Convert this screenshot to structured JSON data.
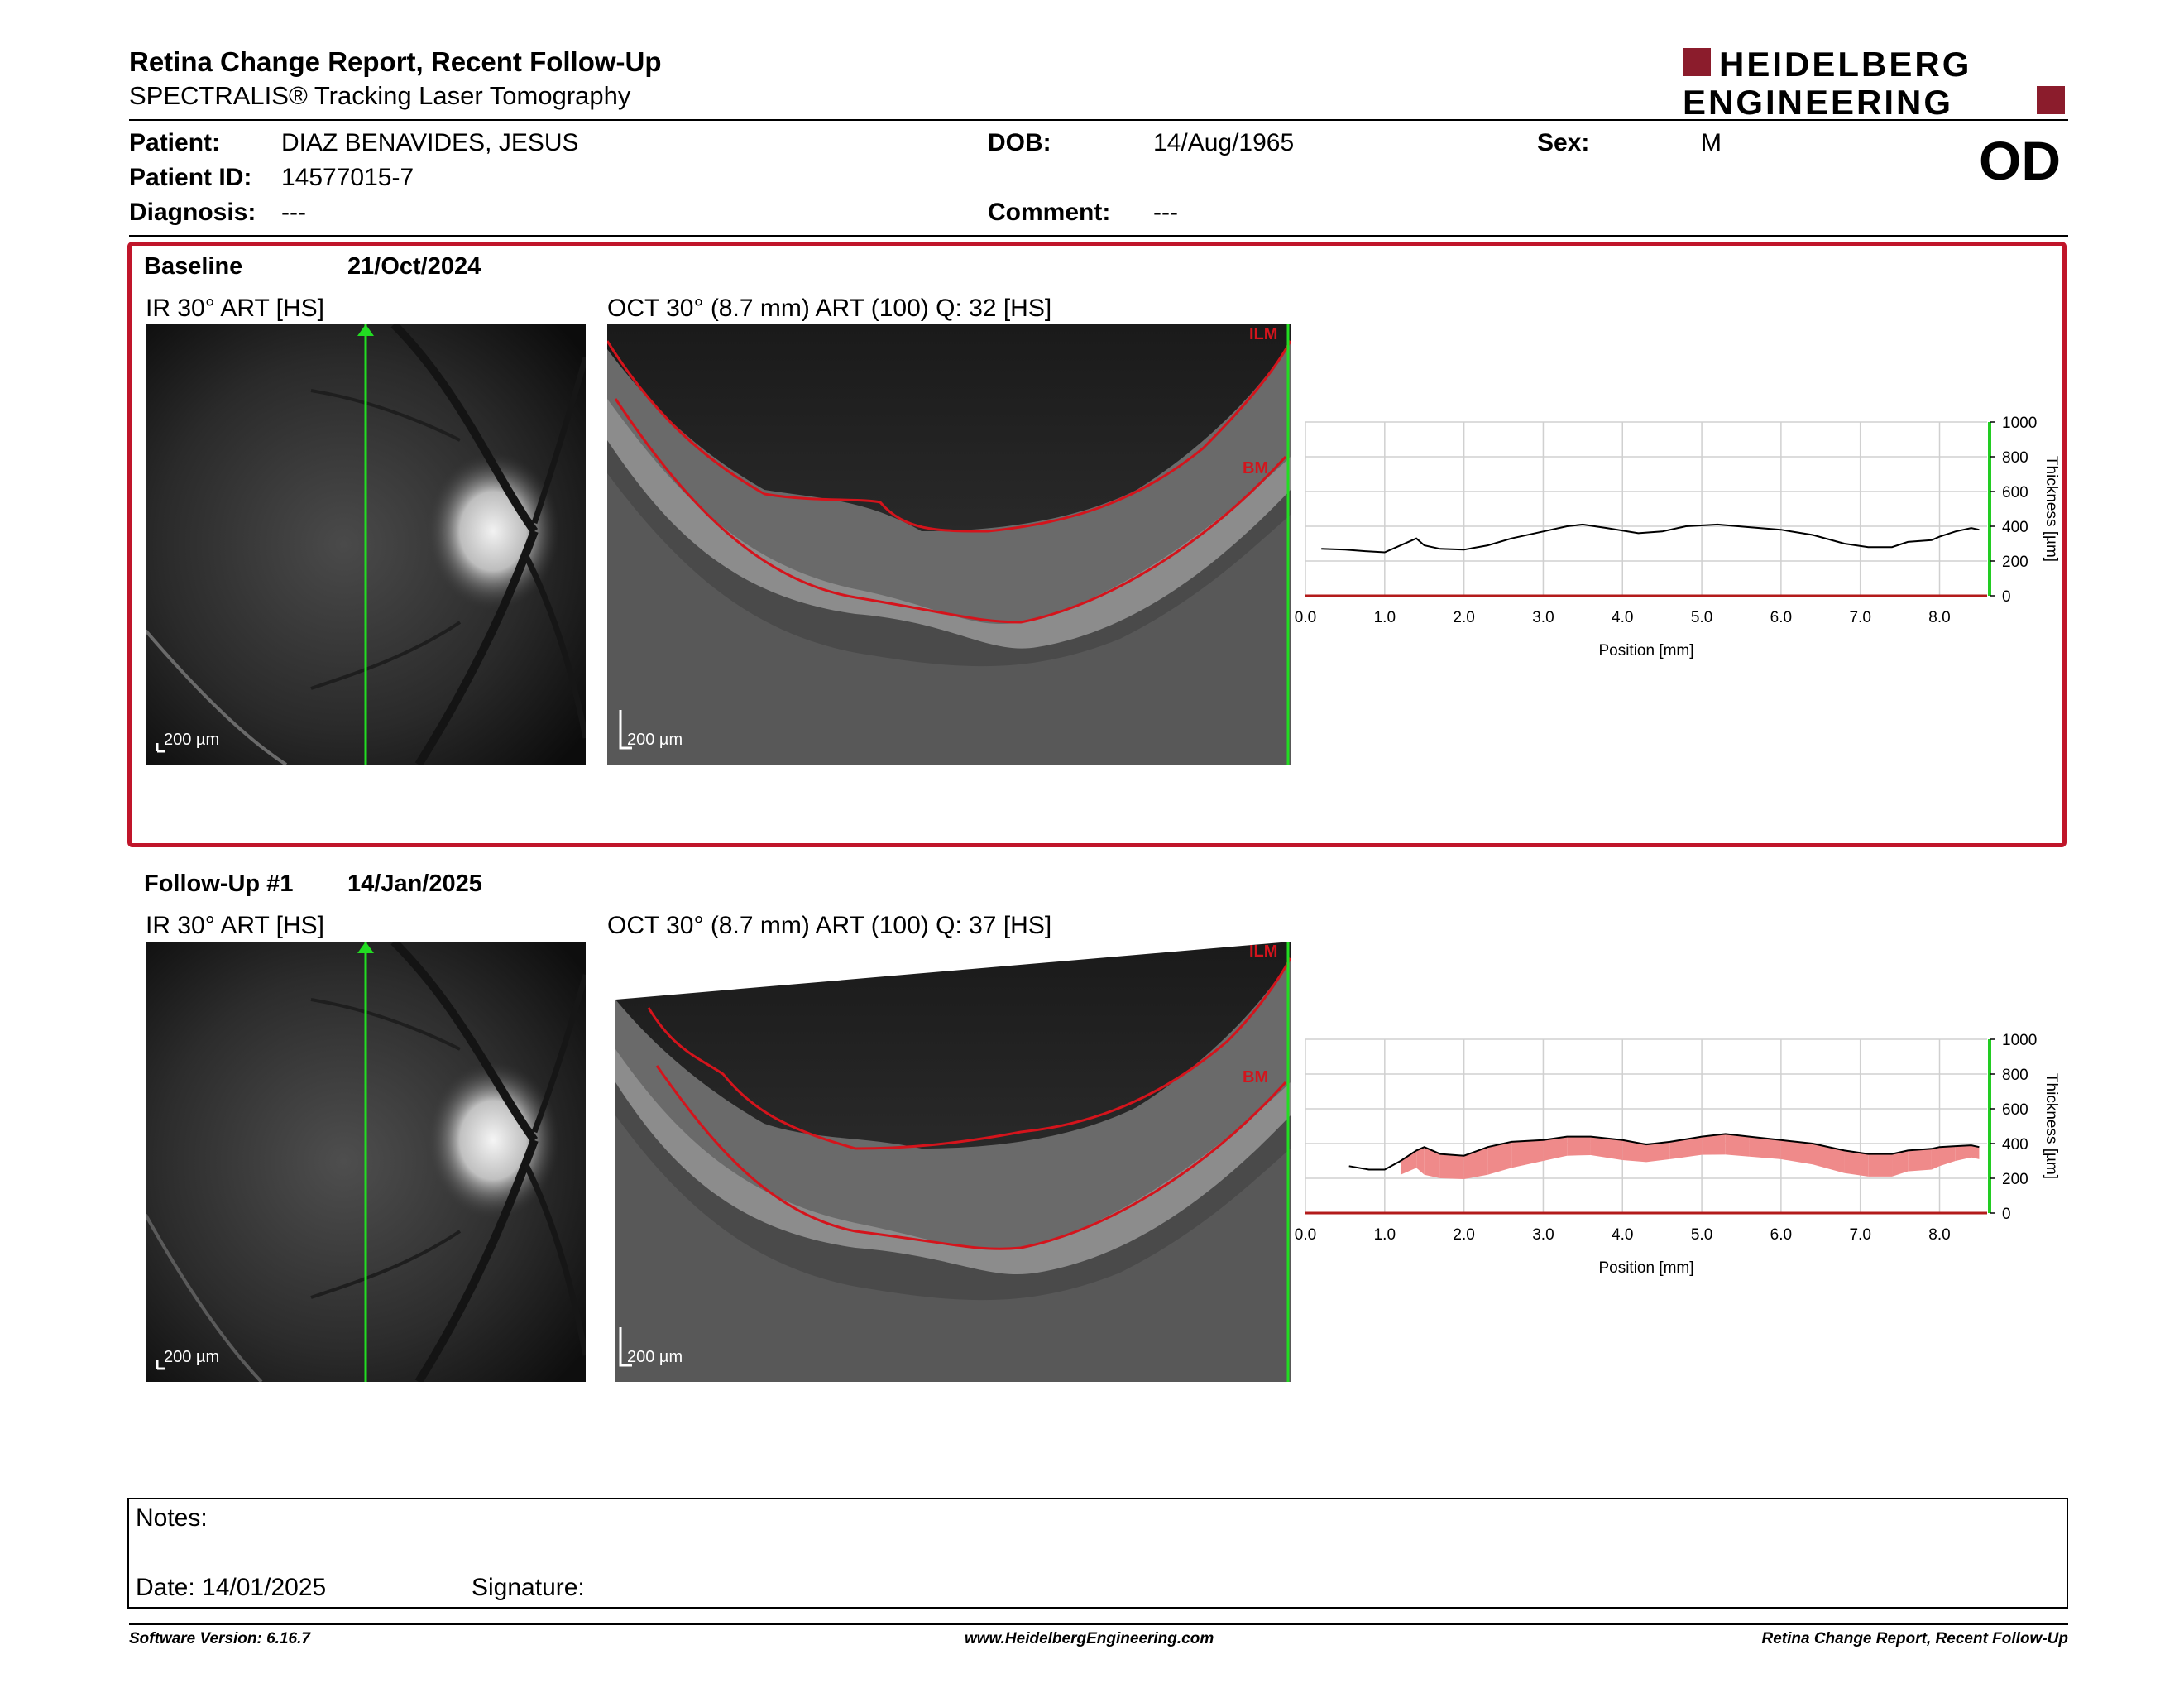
{
  "report": {
    "title": "Retina Change Report, Recent Follow-Up",
    "subtitle": "SPECTRALIS® Tracking Laser Tomography"
  },
  "logo": {
    "line1": "HEIDELBERG",
    "line2": "ENGINEERING",
    "color": "#8b1c2c"
  },
  "patient": {
    "name_label": "Patient:",
    "name": "DIAZ BENAVIDES, JESUS",
    "id_label": "Patient ID:",
    "id": "14577015-7",
    "diagnosis_label": "Diagnosis:",
    "diagnosis": "---",
    "dob_label": "DOB:",
    "dob": "14/Aug/1965",
    "comment_label": "Comment:",
    "comment": "---",
    "sex_label": "Sex:",
    "sex": "M",
    "eye": "OD"
  },
  "baseline": {
    "label": "Baseline",
    "date": "21/Oct/2024",
    "ir_title": "IR 30° ART [HS]",
    "oct_title": "OCT 30° (8.7 mm) ART (100) Q: 32 [HS]",
    "ir_scale": "200 µm",
    "oct_scale": "200 µm",
    "ilm_label": "ILM",
    "bm_label": "BM",
    "highlight_color": "#c0152a"
  },
  "followup": {
    "label": "Follow-Up #1",
    "date": "14/Jan/2025",
    "ir_title": "IR 30° ART [HS]",
    "oct_title": "OCT 30° (8.7 mm) ART (100) Q: 37 [HS]",
    "ir_scale": "200 µm",
    "oct_scale": "200 µm",
    "ilm_label": "ILM",
    "bm_label": "BM"
  },
  "chart_data": [
    {
      "type": "line",
      "xlabel": "Position [mm]",
      "ylabel": "Thickness [µm]",
      "xlim": [
        0.0,
        8.6
      ],
      "ylim": [
        0,
        1000
      ],
      "xticks": [
        "0.0",
        "1.0",
        "2.0",
        "3.0",
        "4.0",
        "5.0",
        "6.0",
        "7.0",
        "8.0"
      ],
      "yticks": [
        "0",
        "200",
        "400",
        "600",
        "800",
        "1000"
      ],
      "grid": true,
      "series": [
        {
          "values": [
            [
              0.2,
              270
            ],
            [
              0.5,
              265
            ],
            [
              0.8,
              255
            ],
            [
              1.0,
              250
            ],
            [
              1.2,
              290
            ],
            [
              1.4,
              330
            ],
            [
              1.5,
              290
            ],
            [
              1.7,
              270
            ],
            [
              2.0,
              265
            ],
            [
              2.3,
              290
            ],
            [
              2.6,
              330
            ],
            [
              3.0,
              370
            ],
            [
              3.3,
              400
            ],
            [
              3.5,
              410
            ],
            [
              3.8,
              390
            ],
            [
              4.2,
              360
            ],
            [
              4.5,
              370
            ],
            [
              4.8,
              400
            ],
            [
              5.2,
              410
            ],
            [
              5.6,
              395
            ],
            [
              6.0,
              380
            ],
            [
              6.4,
              350
            ],
            [
              6.8,
              300
            ],
            [
              7.1,
              280
            ],
            [
              7.4,
              280
            ],
            [
              7.6,
              310
            ],
            [
              7.9,
              320
            ],
            [
              8.0,
              340
            ],
            [
              8.2,
              370
            ],
            [
              8.4,
              390
            ],
            [
              8.5,
              380
            ]
          ]
        }
      ]
    },
    {
      "type": "line",
      "xlabel": "Position [mm]",
      "ylabel": "Thickness [µm]",
      "xlim": [
        0.0,
        8.6
      ],
      "ylim": [
        0,
        1000
      ],
      "xticks": [
        "0.0",
        "1.0",
        "2.0",
        "3.0",
        "4.0",
        "5.0",
        "6.0",
        "7.0",
        "8.0"
      ],
      "yticks": [
        "0",
        "200",
        "400",
        "600",
        "800",
        "1000"
      ],
      "grid": true,
      "decrease_color": "#ef8a8a",
      "increase_color": "#7ed27e",
      "series": [
        {
          "values": [
            [
              0.55,
              270
            ],
            [
              0.8,
              250
            ],
            [
              1.0,
              250
            ],
            [
              1.2,
              300
            ],
            [
              1.4,
              360
            ],
            [
              1.5,
              380
            ],
            [
              1.7,
              340
            ],
            [
              2.0,
              330
            ],
            [
              2.3,
              380
            ],
            [
              2.6,
              410
            ],
            [
              3.0,
              420
            ],
            [
              3.3,
              440
            ],
            [
              3.6,
              440
            ],
            [
              4.0,
              420
            ],
            [
              4.3,
              395
            ],
            [
              4.6,
              410
            ],
            [
              5.0,
              440
            ],
            [
              5.3,
              455
            ],
            [
              5.6,
              440
            ],
            [
              6.0,
              420
            ],
            [
              6.4,
              400
            ],
            [
              6.8,
              360
            ],
            [
              7.1,
              340
            ],
            [
              7.4,
              340
            ],
            [
              7.6,
              360
            ],
            [
              7.9,
              370
            ],
            [
              8.0,
              380
            ],
            [
              8.2,
              385
            ],
            [
              8.4,
              390
            ],
            [
              8.5,
              380
            ]
          ]
        }
      ]
    }
  ],
  "notes": {
    "notes_label": "Notes:",
    "date_label": "Date: 14/01/2025",
    "signature_label": "Signature:"
  },
  "footer": {
    "software": "Software Version: 6.16.7",
    "website": "www.HeidelbergEngineering.com",
    "report_name": "Retina Change Report, Recent Follow-Up"
  }
}
